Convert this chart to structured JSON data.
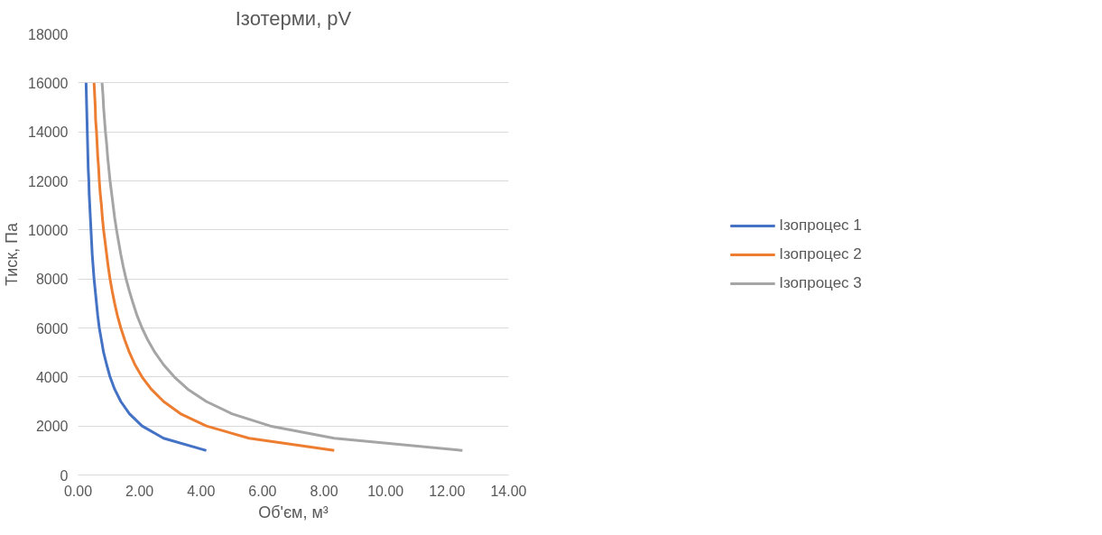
{
  "chart_data": {
    "type": "line",
    "title": "Ізотерми, pV",
    "xlabel": "Об'єм, м³",
    "ylabel": "Тиск, Па",
    "xlim": [
      0,
      14
    ],
    "ylim": [
      0,
      18000
    ],
    "xticks": [
      {
        "value": 0,
        "label": "0.00"
      },
      {
        "value": 2,
        "label": "2.00"
      },
      {
        "value": 4,
        "label": "4.00"
      },
      {
        "value": 6,
        "label": "6.00"
      },
      {
        "value": 8,
        "label": "8.00"
      },
      {
        "value": 10,
        "label": "10.00"
      },
      {
        "value": 12,
        "label": "12.00"
      },
      {
        "value": 14,
        "label": "14.00"
      }
    ],
    "yticks": [
      0,
      2000,
      4000,
      6000,
      8000,
      10000,
      12000,
      14000,
      16000,
      18000
    ],
    "grid": "y",
    "legend": "right",
    "marker": "none",
    "line_style": "solid",
    "series": [
      {
        "name": "Ізопроцес 1",
        "color": "#4472c4",
        "x": [
          4.17,
          2.78,
          2.08,
          1.67,
          1.39,
          1.19,
          1.04,
          0.93,
          0.83,
          0.76,
          0.69,
          0.64,
          0.6,
          0.56,
          0.52,
          0.49,
          0.46,
          0.44,
          0.42,
          0.4,
          0.38,
          0.36,
          0.35,
          0.33,
          0.32,
          0.31,
          0.3,
          0.29,
          0.28,
          0.27,
          0.26
        ],
        "values": [
          1000,
          1500,
          2000,
          2500,
          3000,
          3500,
          4000,
          4500,
          5000,
          5500,
          6000,
          6500,
          7000,
          7500,
          8000,
          8500,
          9000,
          9500,
          10000,
          10500,
          11000,
          11500,
          12000,
          12500,
          13000,
          13500,
          14000,
          14500,
          15000,
          15500,
          16000
        ]
      },
      {
        "name": "Ізопроцес 2",
        "color": "#ed7d31",
        "x": [
          8.33,
          5.56,
          4.17,
          3.33,
          2.78,
          2.38,
          2.08,
          1.85,
          1.67,
          1.52,
          1.39,
          1.28,
          1.19,
          1.11,
          1.04,
          0.98,
          0.93,
          0.88,
          0.83,
          0.79,
          0.76,
          0.72,
          0.69,
          0.67,
          0.64,
          0.62,
          0.6,
          0.57,
          0.56,
          0.54,
          0.52
        ],
        "values": [
          1000,
          1500,
          2000,
          2500,
          3000,
          3500,
          4000,
          4500,
          5000,
          5500,
          6000,
          6500,
          7000,
          7500,
          8000,
          8500,
          9000,
          9500,
          10000,
          10500,
          11000,
          11500,
          12000,
          12500,
          13000,
          13500,
          14000,
          14500,
          15000,
          15500,
          16000
        ]
      },
      {
        "name": "Ізопроцес 3",
        "color": "#a5a5a5",
        "x": [
          12.5,
          8.33,
          6.25,
          5.0,
          4.17,
          3.57,
          3.13,
          2.78,
          2.5,
          2.27,
          2.08,
          1.92,
          1.79,
          1.67,
          1.56,
          1.47,
          1.39,
          1.32,
          1.25,
          1.19,
          1.14,
          1.09,
          1.04,
          1.0,
          0.96,
          0.93,
          0.89,
          0.86,
          0.83,
          0.81,
          0.78
        ],
        "values": [
          1000,
          1500,
          2000,
          2500,
          3000,
          3500,
          4000,
          4500,
          5000,
          5500,
          6000,
          6500,
          7000,
          7500,
          8000,
          8500,
          9000,
          9500,
          10000,
          10500,
          11000,
          11500,
          12000,
          12500,
          13000,
          13500,
          14000,
          14500,
          15000,
          15500,
          16000
        ]
      }
    ]
  }
}
